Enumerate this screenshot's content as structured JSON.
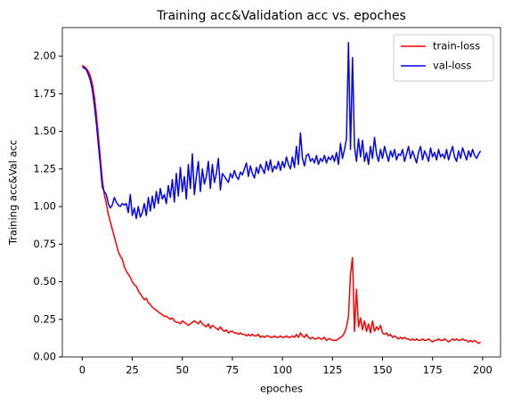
{
  "chart_data": {
    "type": "line",
    "title": "Training acc&Validation acc vs. epoches",
    "xlabel": "epoches",
    "ylabel": "Training acc&Val acc",
    "x": [
      0,
      1,
      2,
      3,
      4,
      5,
      6,
      7,
      8,
      9,
      10,
      11,
      12,
      13,
      14,
      15,
      16,
      17,
      18,
      19,
      20,
      21,
      22,
      23,
      24,
      25,
      26,
      27,
      28,
      29,
      30,
      31,
      32,
      33,
      34,
      35,
      36,
      37,
      38,
      39,
      40,
      41,
      42,
      43,
      44,
      45,
      46,
      47,
      48,
      49,
      50,
      51,
      52,
      53,
      54,
      55,
      56,
      57,
      58,
      59,
      60,
      61,
      62,
      63,
      64,
      65,
      66,
      67,
      68,
      69,
      70,
      71,
      72,
      73,
      74,
      75,
      76,
      77,
      78,
      79,
      80,
      81,
      82,
      83,
      84,
      85,
      86,
      87,
      88,
      89,
      90,
      91,
      92,
      93,
      94,
      95,
      96,
      97,
      98,
      99,
      100,
      101,
      102,
      103,
      104,
      105,
      106,
      107,
      108,
      109,
      110,
      111,
      112,
      113,
      114,
      115,
      116,
      117,
      118,
      119,
      120,
      121,
      122,
      123,
      124,
      125,
      126,
      127,
      128,
      129,
      130,
      131,
      132,
      133,
      134,
      135,
      136,
      137,
      138,
      139,
      140,
      141,
      142,
      143,
      144,
      145,
      146,
      147,
      148,
      149,
      150,
      151,
      152,
      153,
      154,
      155,
      156,
      157,
      158,
      159,
      160,
      161,
      162,
      163,
      164,
      165,
      166,
      167,
      168,
      169,
      170,
      171,
      172,
      173,
      174,
      175,
      176,
      177,
      178,
      179,
      180,
      181,
      182,
      183,
      184,
      185,
      186,
      187,
      188,
      189,
      190,
      191,
      192,
      193,
      194,
      195,
      196,
      197,
      198,
      199
    ],
    "series": [
      {
        "name": "train-loss",
        "color": "#ff0000",
        "values": [
          1.94,
          1.93,
          1.92,
          1.9,
          1.87,
          1.82,
          1.74,
          1.62,
          1.48,
          1.33,
          1.18,
          1.08,
          1.02,
          0.95,
          0.9,
          0.85,
          0.8,
          0.75,
          0.7,
          0.67,
          0.65,
          0.6,
          0.57,
          0.55,
          0.53,
          0.5,
          0.48,
          0.47,
          0.44,
          0.42,
          0.4,
          0.38,
          0.39,
          0.36,
          0.35,
          0.33,
          0.32,
          0.31,
          0.3,
          0.29,
          0.28,
          0.27,
          0.27,
          0.26,
          0.25,
          0.26,
          0.24,
          0.23,
          0.23,
          0.22,
          0.24,
          0.23,
          0.22,
          0.21,
          0.22,
          0.23,
          0.24,
          0.23,
          0.22,
          0.24,
          0.22,
          0.21,
          0.2,
          0.22,
          0.19,
          0.21,
          0.2,
          0.19,
          0.18,
          0.2,
          0.18,
          0.17,
          0.18,
          0.16,
          0.17,
          0.17,
          0.16,
          0.16,
          0.15,
          0.16,
          0.15,
          0.15,
          0.14,
          0.15,
          0.14,
          0.15,
          0.14,
          0.14,
          0.15,
          0.13,
          0.14,
          0.13,
          0.14,
          0.14,
          0.13,
          0.13,
          0.14,
          0.13,
          0.13,
          0.14,
          0.13,
          0.13,
          0.14,
          0.13,
          0.13,
          0.14,
          0.13,
          0.15,
          0.13,
          0.16,
          0.14,
          0.13,
          0.15,
          0.13,
          0.12,
          0.13,
          0.12,
          0.12,
          0.13,
          0.12,
          0.12,
          0.13,
          0.11,
          0.12,
          0.12,
          0.11,
          0.11,
          0.11,
          0.12,
          0.13,
          0.14,
          0.16,
          0.2,
          0.27,
          0.55,
          0.66,
          0.17,
          0.45,
          0.2,
          0.26,
          0.18,
          0.24,
          0.17,
          0.22,
          0.16,
          0.24,
          0.17,
          0.2,
          0.18,
          0.21,
          0.16,
          0.15,
          0.16,
          0.14,
          0.15,
          0.13,
          0.14,
          0.13,
          0.12,
          0.13,
          0.12,
          0.13,
          0.12,
          0.12,
          0.11,
          0.12,
          0.11,
          0.12,
          0.11,
          0.11,
          0.12,
          0.11,
          0.11,
          0.12,
          0.11,
          0.1,
          0.11,
          0.11,
          0.12,
          0.11,
          0.11,
          0.12,
          0.11,
          0.1,
          0.11,
          0.12,
          0.11,
          0.12,
          0.11,
          0.11,
          0.12,
          0.11,
          0.11,
          0.1,
          0.11,
          0.1,
          0.11,
          0.1,
          0.09,
          0.1
        ]
      },
      {
        "name": "val-loss",
        "color": "#0000ff",
        "values": [
          1.93,
          1.92,
          1.91,
          1.88,
          1.84,
          1.78,
          1.68,
          1.56,
          1.42,
          1.28,
          1.13,
          1.1,
          1.08,
          1.02,
          0.99,
          1.01,
          1.06,
          1.03,
          1.01,
          1.0,
          1.02,
          1.01,
          1.02,
          0.96,
          1.08,
          0.94,
          0.99,
          0.92,
          1.0,
          0.93,
          0.96,
          1.02,
          0.94,
          1.06,
          0.97,
          1.07,
          0.99,
          1.1,
          1.02,
          1.12,
          1.05,
          1.08,
          1.02,
          1.14,
          1.06,
          1.18,
          1.03,
          1.22,
          1.07,
          1.26,
          1.1,
          1.2,
          1.05,
          1.28,
          1.12,
          1.35,
          1.08,
          1.2,
          1.3,
          1.1,
          1.25,
          1.15,
          1.2,
          1.3,
          1.12,
          1.28,
          1.16,
          1.22,
          1.32,
          1.11,
          1.22,
          1.2,
          1.18,
          1.16,
          1.22,
          1.19,
          1.24,
          1.2,
          1.18,
          1.23,
          1.21,
          1.25,
          1.29,
          1.2,
          1.27,
          1.22,
          1.19,
          1.26,
          1.22,
          1.28,
          1.25,
          1.22,
          1.3,
          1.24,
          1.31,
          1.23,
          1.27,
          1.25,
          1.3,
          1.24,
          1.3,
          1.26,
          1.33,
          1.28,
          1.25,
          1.33,
          1.26,
          1.4,
          1.28,
          1.49,
          1.32,
          1.27,
          1.34,
          1.35,
          1.3,
          1.32,
          1.29,
          1.34,
          1.28,
          1.32,
          1.3,
          1.34,
          1.29,
          1.33,
          1.31,
          1.34,
          1.3,
          1.36,
          1.28,
          1.42,
          1.32,
          1.38,
          1.45,
          2.09,
          1.38,
          1.99,
          1.4,
          1.3,
          1.45,
          1.33,
          1.44,
          1.3,
          1.36,
          1.28,
          1.4,
          1.32,
          1.46,
          1.35,
          1.3,
          1.38,
          1.32,
          1.4,
          1.35,
          1.3,
          1.37,
          1.33,
          1.38,
          1.31,
          1.35,
          1.34,
          1.38,
          1.3,
          1.35,
          1.4,
          1.32,
          1.37,
          1.33,
          1.29,
          1.36,
          1.4,
          1.31,
          1.37,
          1.34,
          1.3,
          1.39,
          1.33,
          1.36,
          1.31,
          1.38,
          1.33,
          1.35,
          1.32,
          1.38,
          1.31,
          1.36,
          1.4,
          1.33,
          1.3,
          1.37,
          1.32,
          1.39,
          1.35,
          1.31,
          1.37,
          1.33,
          1.38,
          1.34,
          1.32,
          1.35,
          1.37
        ]
      }
    ],
    "xlim": [
      -9.95,
      208.95
    ],
    "ylim": [
      0.0,
      2.19
    ],
    "xticks": [
      0,
      25,
      50,
      75,
      100,
      125,
      150,
      175,
      200
    ],
    "yticks": [
      {
        "value": 0,
        "label": "0.00"
      },
      {
        "value": 0.25,
        "label": "0.25"
      },
      {
        "value": 0.5,
        "label": "0.50"
      },
      {
        "value": 0.75,
        "label": "0.75"
      },
      {
        "value": 1,
        "label": "1.00"
      },
      {
        "value": 1.25,
        "label": "1.25"
      },
      {
        "value": 1.5,
        "label": "1.50"
      },
      {
        "value": 1.75,
        "label": "1.75"
      },
      {
        "value": 2,
        "label": "2.00"
      }
    ],
    "legend": "upper right"
  }
}
